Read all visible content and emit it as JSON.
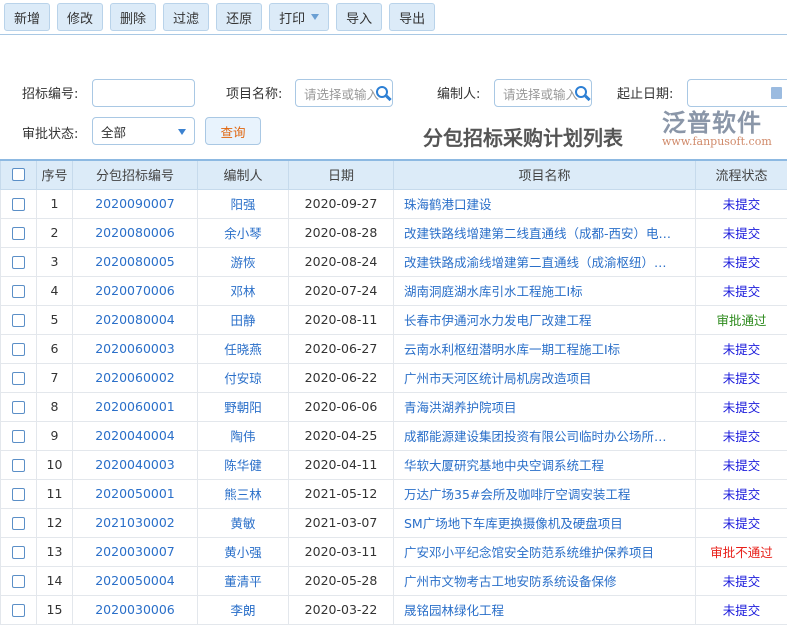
{
  "toolbar": {
    "buttons": [
      "新增",
      "修改",
      "删除",
      "过滤",
      "还原",
      "打印",
      "导入",
      "导出"
    ]
  },
  "filters": {
    "bid_no_label": "招标编号:",
    "bid_no_value": "",
    "project_label": "项目名称:",
    "project_placeholder": "请选择或输入",
    "author_label": "编制人:",
    "author_placeholder": "请选择或输入",
    "date_label": "起止日期:",
    "status_label": "审批状态:",
    "status_value": "全部",
    "query_label": "查询"
  },
  "page_title": "分包招标采购计划列表",
  "table": {
    "headers": [
      "序号",
      "分包招标编号",
      "编制人",
      "日期",
      "项目名称",
      "流程状态"
    ],
    "rows": [
      [
        "1",
        "2020090007",
        "阳强",
        "2020-09-27",
        "珠海鹤港口建设",
        "未提交"
      ],
      [
        "2",
        "2020080006",
        "余小琴",
        "2020-08-28",
        "改建铁路线增建第二线直通线（成都-西安）电…",
        "未提交"
      ],
      [
        "3",
        "2020080005",
        "游恢",
        "2020-08-24",
        "改建铁路成渝线增建第二直通线（成渝枢纽）…",
        "未提交"
      ],
      [
        "4",
        "2020070006",
        "邓林",
        "2020-07-24",
        "湖南洞庭湖水库引水工程施工Ⅰ标",
        "未提交"
      ],
      [
        "5",
        "2020080004",
        "田静",
        "2020-08-11",
        "长春市伊通河水力发电厂改建工程",
        "审批通过"
      ],
      [
        "6",
        "2020060003",
        "任晓燕",
        "2020-06-27",
        "云南水利枢纽潜明水库一期工程施工Ⅰ标",
        "未提交"
      ],
      [
        "7",
        "2020060002",
        "付安琼",
        "2020-06-22",
        "广州市天河区统计局机房改造项目",
        "未提交"
      ],
      [
        "8",
        "2020060001",
        "野朝阳",
        "2020-06-06",
        "青海洪湖养护院项目",
        "未提交"
      ],
      [
        "9",
        "2020040004",
        "陶伟",
        "2020-04-25",
        "成都能源建设集团投资有限公司临时办公场所…",
        "未提交"
      ],
      [
        "10",
        "2020040003",
        "陈华健",
        "2020-04-11",
        "华软大厦研究基地中央空调系统工程",
        "未提交"
      ],
      [
        "11",
        "2020050001",
        "熊三林",
        "2021-05-12",
        "万达广场35#会所及咖啡厅空调安装工程",
        "未提交"
      ],
      [
        "12",
        "2021030002",
        "黄敏",
        "2021-03-07",
        "SM广场地下车库更换摄像机及硬盘项目",
        "未提交"
      ],
      [
        "13",
        "2020030007",
        "黄小强",
        "2020-03-11",
        "广安邓小平纪念馆安全防范系统维护保养项目",
        "审批不通过"
      ],
      [
        "14",
        "2020050004",
        "董清平",
        "2020-05-28",
        "广州市文物考古工地安防系统设备保修",
        "未提交"
      ],
      [
        "15",
        "2020030006",
        "李朗",
        "2020-03-22",
        "晟铭园林绿化工程",
        "未提交"
      ]
    ]
  },
  "status_colors": {
    "未提交": "#1a1adb",
    "审批通过": "#2e8b1e",
    "审批不通过": "#e8201a"
  },
  "watermark": {
    "brand": "泛普软件",
    "url": "www.fanpusoft.com"
  }
}
